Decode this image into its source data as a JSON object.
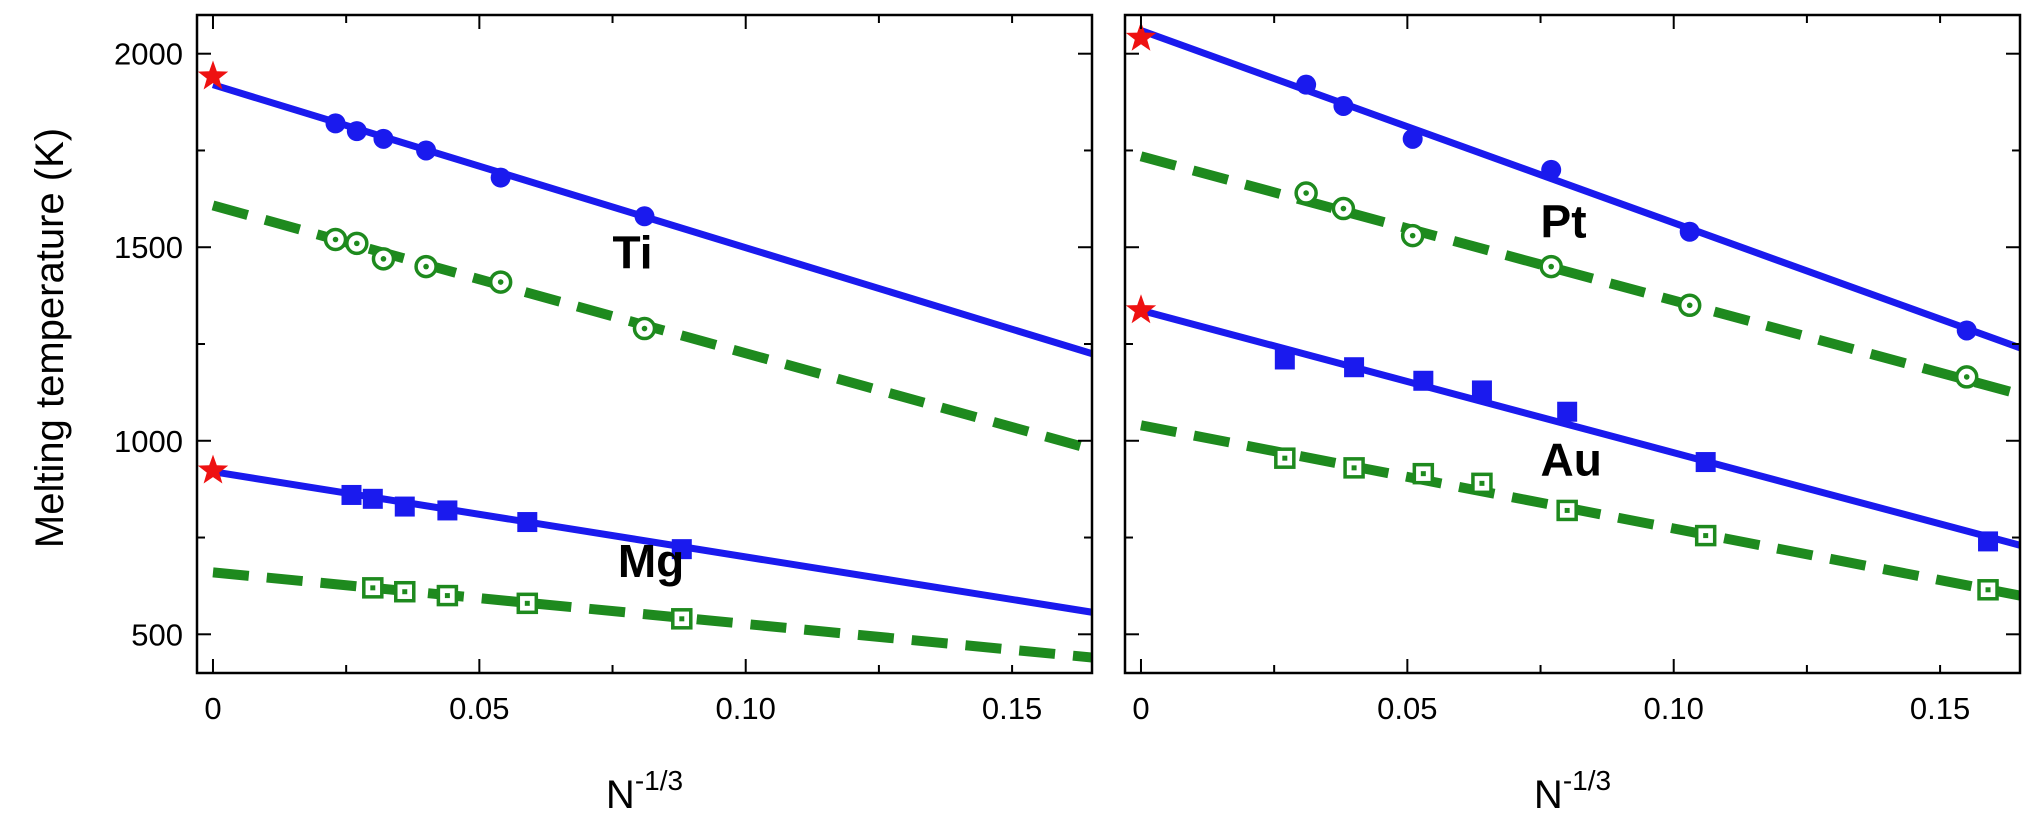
{
  "figure": {
    "ylabel": "Melting temperature (K)",
    "colors": {
      "md": "#1a1aee",
      "model": "#1e8a1e",
      "bulk": "#ee1111",
      "axis": "#000000"
    }
  },
  "chart_data": [
    {
      "type": "scatter",
      "panel": "left",
      "xlabel": "N-1/3",
      "xlabel_base": "N",
      "xlabel_exp": "-1/3",
      "ylabel": "Melting temperature (K)",
      "xlim": [
        -0.003,
        0.165
      ],
      "ylim": [
        400,
        2100
      ],
      "xticks": [
        0,
        0.05,
        0.1,
        0.15
      ],
      "xtick_labels": [
        "0",
        "0.05",
        "0.10",
        "0.15"
      ],
      "yticks": [
        500,
        1000,
        1500,
        2000
      ],
      "ytick_labels": [
        "500",
        "1000",
        "1500",
        "2000"
      ],
      "annotations": [
        {
          "text": "Ti",
          "x": 0.075,
          "y": 1445
        },
        {
          "text": "Mg",
          "x": 0.076,
          "y": 648
        }
      ],
      "series": [
        {
          "element": "Ti",
          "style": "md",
          "marker": "circle",
          "filled": true,
          "points": [
            [
              0.023,
              1820
            ],
            [
              0.027,
              1800
            ],
            [
              0.032,
              1780
            ],
            [
              0.04,
              1750
            ],
            [
              0.054,
              1680
            ],
            [
              0.081,
              1580
            ]
          ]
        },
        {
          "element": "Ti",
          "style": "model",
          "marker": "circle-dot",
          "filled": false,
          "points": [
            [
              0.023,
              1520
            ],
            [
              0.027,
              1510
            ],
            [
              0.032,
              1470
            ],
            [
              0.04,
              1450
            ],
            [
              0.054,
              1410
            ],
            [
              0.081,
              1290
            ]
          ]
        },
        {
          "element": "Mg",
          "style": "md",
          "marker": "square",
          "filled": true,
          "points": [
            [
              0.026,
              860
            ],
            [
              0.03,
              850
            ],
            [
              0.036,
              830
            ],
            [
              0.044,
              820
            ],
            [
              0.059,
              790
            ],
            [
              0.088,
              720
            ]
          ]
        },
        {
          "element": "Mg",
          "style": "model",
          "marker": "square-dot",
          "filled": false,
          "points": [
            [
              0.03,
              620
            ],
            [
              0.036,
              610
            ],
            [
              0.044,
              600
            ],
            [
              0.059,
              580
            ],
            [
              0.088,
              540
            ]
          ]
        }
      ],
      "fits": [
        {
          "element": "Ti",
          "style": "md",
          "line": "solid",
          "x": [
            0,
            0.165
          ],
          "y": [
            1920,
            1225
          ]
        },
        {
          "element": "Ti",
          "style": "model",
          "line": "dashed",
          "x": [
            0,
            0.165
          ],
          "y": [
            1608,
            978
          ]
        },
        {
          "element": "Mg",
          "style": "md",
          "line": "solid",
          "x": [
            0,
            0.165
          ],
          "y": [
            920,
            557
          ]
        },
        {
          "element": "Mg",
          "style": "model",
          "line": "dashed",
          "x": [
            0,
            0.165
          ],
          "y": [
            660,
            440
          ]
        }
      ],
      "bulk_points": [
        {
          "element": "Ti",
          "x": 0,
          "y": 1941
        },
        {
          "element": "Mg",
          "x": 0,
          "y": 923
        }
      ]
    },
    {
      "type": "scatter",
      "panel": "right",
      "xlabel": "N-1/3",
      "xlabel_base": "N",
      "xlabel_exp": "-1/3",
      "xlim": [
        -0.003,
        0.165
      ],
      "ylim": [
        400,
        2100
      ],
      "xticks": [
        0,
        0.05,
        0.1,
        0.15
      ],
      "xtick_labels": [
        "0",
        "0.05",
        "0.10",
        "0.15"
      ],
      "yticks": [
        500,
        1000,
        1500,
        2000
      ],
      "annotations": [
        {
          "text": "Pt",
          "x": 0.075,
          "y": 1525
        },
        {
          "text": "Au",
          "x": 0.075,
          "y": 910
        }
      ],
      "series": [
        {
          "element": "Pt",
          "style": "md",
          "marker": "circle",
          "filled": true,
          "points": [
            [
              0.031,
              1920
            ],
            [
              0.038,
              1865
            ],
            [
              0.051,
              1780
            ],
            [
              0.077,
              1700
            ],
            [
              0.103,
              1540
            ],
            [
              0.155,
              1285
            ]
          ]
        },
        {
          "element": "Pt",
          "style": "model",
          "marker": "circle-dot",
          "filled": false,
          "points": [
            [
              0.031,
              1640
            ],
            [
              0.038,
              1600
            ],
            [
              0.051,
              1530
            ],
            [
              0.077,
              1450
            ],
            [
              0.103,
              1350
            ],
            [
              0.155,
              1165
            ]
          ]
        },
        {
          "element": "Au",
          "style": "md",
          "marker": "square",
          "filled": true,
          "points": [
            [
              0.027,
              1210
            ],
            [
              0.04,
              1190
            ],
            [
              0.053,
              1155
            ],
            [
              0.064,
              1130
            ],
            [
              0.08,
              1075
            ],
            [
              0.106,
              945
            ],
            [
              0.159,
              740
            ]
          ]
        },
        {
          "element": "Au",
          "style": "model",
          "marker": "square-dot",
          "filled": false,
          "points": [
            [
              0.027,
              955
            ],
            [
              0.04,
              930
            ],
            [
              0.053,
              915
            ],
            [
              0.064,
              890
            ],
            [
              0.08,
              820
            ],
            [
              0.106,
              755
            ],
            [
              0.159,
              615
            ]
          ]
        }
      ],
      "fits": [
        {
          "element": "Pt",
          "style": "md",
          "line": "solid",
          "x": [
            0,
            0.165
          ],
          "y": [
            2060,
            1240
          ]
        },
        {
          "element": "Pt",
          "style": "model",
          "line": "dashed",
          "x": [
            0,
            0.165
          ],
          "y": [
            1735,
            1120
          ]
        },
        {
          "element": "Au",
          "style": "md",
          "line": "solid",
          "x": [
            0,
            0.165
          ],
          "y": [
            1337,
            730
          ]
        },
        {
          "element": "Au",
          "style": "model",
          "line": "dashed",
          "x": [
            0,
            0.165
          ],
          "y": [
            1040,
            600
          ]
        }
      ],
      "bulk_points": [
        {
          "element": "Pt",
          "x": 0,
          "y": 2041
        },
        {
          "element": "Au",
          "x": 0,
          "y": 1337
        }
      ]
    }
  ]
}
